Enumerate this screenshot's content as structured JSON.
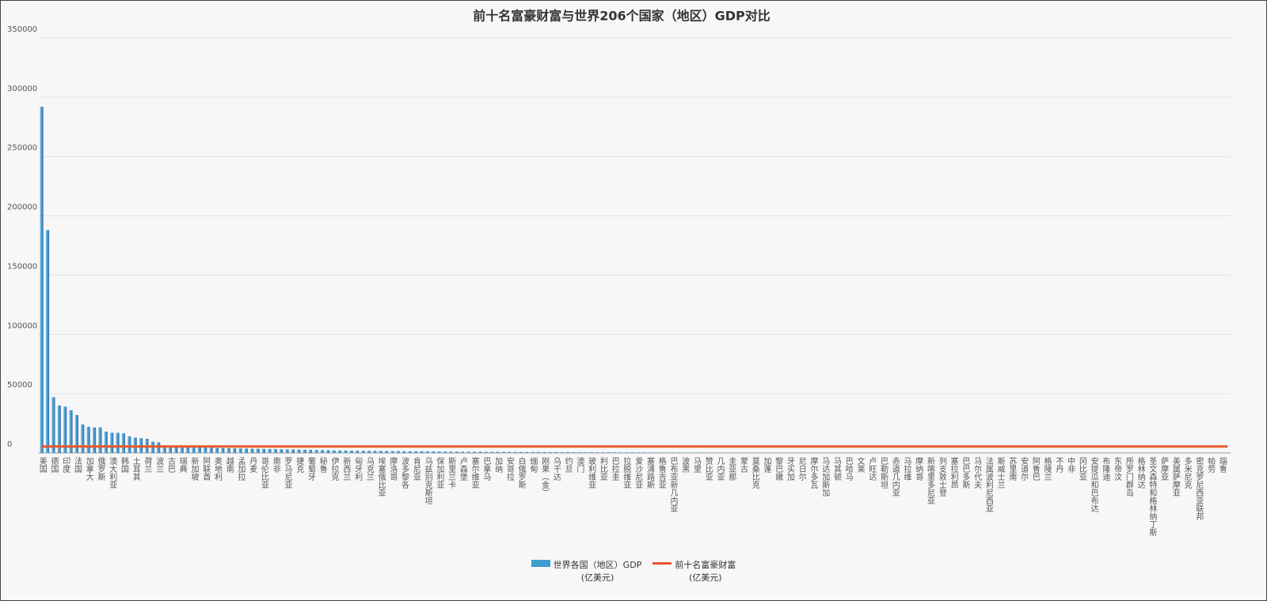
{
  "chart_data": {
    "type": "bar",
    "title": "前十名富豪财富与世界206个国家（地区）GDP对比",
    "categories": [
      "美国",
      null,
      "德国",
      null,
      "印度",
      null,
      "法国",
      null,
      "加拿大",
      null,
      "俄罗斯",
      null,
      "澳大利亚",
      null,
      "韩国",
      null,
      "土耳其",
      null,
      "荷兰",
      null,
      "波兰",
      null,
      "古巴",
      null,
      "瑞典",
      null,
      "新加坡",
      null,
      "阿联酋",
      null,
      "奥地利",
      null,
      "越南",
      null,
      "孟加拉",
      null,
      "丹麦",
      null,
      "哥伦比亚",
      null,
      "南非",
      null,
      "罗马尼亚",
      null,
      "捷克",
      null,
      "葡萄牙",
      null,
      "秘鲁",
      null,
      "伊拉克",
      null,
      "新西兰",
      null,
      "匈牙利",
      null,
      "乌克兰",
      null,
      "埃塞俄比亚",
      null,
      "摩洛哥",
      null,
      "波多黎各",
      null,
      "肯尼亚",
      null,
      "乌兹别克斯坦",
      null,
      "保加利亚",
      null,
      "斯里兰卡",
      null,
      "卢森堡",
      null,
      "塞尔维亚",
      null,
      "巴拿马",
      null,
      "加纳",
      null,
      "安哥拉",
      null,
      "白俄罗斯",
      null,
      "缅甸",
      null,
      "刚果（金）",
      null,
      "乌干达",
      null,
      "约旦",
      null,
      "澳门",
      null,
      "玻利维亚",
      null,
      "利比亚",
      null,
      "巴拉圭",
      null,
      "拉脱维亚",
      null,
      "爱沙尼亚",
      null,
      "塞浦路斯",
      null,
      "格鲁吉亚",
      null,
      "巴布亚新几内亚",
      null,
      "波黑",
      null,
      "马里",
      null,
      "赞比亚",
      null,
      "几内亚",
      null,
      "圭亚那",
      null,
      "蒙古",
      null,
      "莫桑比克",
      null,
      "加蓬",
      null,
      "黎巴嫩",
      null,
      "牙买加",
      null,
      "尼日尔",
      null,
      "摩尔多瓦",
      null,
      "马达加斯加",
      null,
      "马其顿",
      null,
      "巴哈马",
      null,
      "文莱",
      null,
      "卢旺达",
      null,
      "巴勒斯坦",
      null,
      "赤道几内亚",
      null,
      "马拉维",
      null,
      "摩纳哥",
      null,
      "新喀里多尼亚",
      null,
      "列支敦士登",
      null,
      "塞拉利昂",
      null,
      "巴巴多斯",
      null,
      "马尔代夫",
      null,
      "法属波利尼西亚",
      null,
      "斯威士兰",
      null,
      "苏里南",
      null,
      "安道尔",
      null,
      "阿鲁巴",
      null,
      "格陵兰",
      null,
      "不丹",
      null,
      "中非",
      null,
      "冈比亚",
      null,
      "安提瓜和巴布达",
      null,
      "布隆迪",
      null,
      "东帝汶",
      null,
      "所罗门群岛",
      null,
      "格林纳达",
      null,
      "圣文森特和格林纳丁斯",
      null,
      "萨摩亚",
      null,
      "美属萨摩亚",
      null,
      "多米尼克",
      null,
      "密克罗尼西亚联邦",
      null,
      "帕劳",
      null,
      "瑙鲁",
      null
    ],
    "series": [
      {
        "name": "世界各国（地区）GDP\n(亿美元)",
        "type": "bar",
        "color": "#3d9fd0",
        "values": [
          292000,
          188000,
          47000,
          40000,
          39000,
          36000,
          32000,
          24000,
          22000,
          21500,
          21500,
          18000,
          17000,
          17000,
          16500,
          14000,
          13000,
          12500,
          12000,
          9500,
          9000,
          6500,
          6000,
          6000,
          5500,
          5000,
          4800,
          4600,
          4500,
          4400,
          4200,
          4100,
          4000,
          3900,
          3800,
          3700,
          3600,
          3500,
          3400,
          3300,
          3200,
          3100,
          3000,
          2900,
          2800,
          2700,
          2600,
          2500,
          2400,
          2300,
          2200,
          2100,
          2000,
          1950,
          1900,
          1850,
          1800,
          1750,
          1700,
          1650,
          1600,
          1550,
          1500,
          1450,
          1400,
          1350,
          1300,
          1250,
          1200,
          1150,
          1100,
          1050,
          1000,
          980,
          960,
          940,
          920,
          900,
          880,
          860,
          840,
          820,
          800,
          780,
          760,
          740,
          720,
          700,
          680,
          660,
          640,
          620,
          600,
          580,
          560,
          540,
          520,
          500,
          480,
          460,
          440,
          430,
          420,
          410,
          400,
          390,
          380,
          370,
          360,
          350,
          340,
          330,
          320,
          310,
          300,
          290,
          280,
          270,
          260,
          250,
          240,
          235,
          230,
          225,
          220,
          215,
          210,
          205,
          200,
          195,
          190,
          185,
          180,
          175,
          170,
          165,
          160,
          155,
          150,
          145,
          140,
          135,
          130,
          125,
          120,
          115,
          110,
          105,
          100,
          98,
          96,
          94,
          92,
          90,
          88,
          86,
          84,
          82,
          80,
          78,
          76,
          74,
          72,
          70,
          68,
          66,
          64,
          62,
          60,
          58,
          56,
          54,
          52,
          50,
          48,
          46,
          44,
          42,
          40,
          38,
          36,
          34,
          32,
          30,
          28,
          26,
          24,
          22,
          20,
          19,
          18,
          17,
          16,
          15,
          14,
          13,
          12,
          11,
          10,
          9,
          8,
          7,
          6,
          5
        ]
      },
      {
        "name": "前十名富豪财富\n(亿美元)",
        "type": "line",
        "color": "#e8572a",
        "values": [
          5400,
          5400,
          5400,
          5400,
          5400,
          5400,
          5400,
          5400,
          5400,
          5400,
          5400,
          5400,
          5400,
          5400,
          5400,
          5400,
          5400,
          5400,
          5400,
          5400,
          5400,
          5400,
          5400,
          5400,
          5400,
          5400,
          5400,
          5400,
          5400,
          5400,
          5400,
          5400,
          5400,
          5400,
          5400,
          5400,
          5400,
          5400,
          5400,
          5400,
          5400,
          5400,
          5400,
          5400,
          5400,
          5400,
          5400,
          5400,
          5400,
          5400,
          5400,
          5400,
          5400,
          5400,
          5400,
          5400,
          5400,
          5400,
          5400,
          5400,
          5400,
          5400,
          5400,
          5400,
          5400,
          5400,
          5400,
          5400,
          5400,
          5400,
          5400,
          5400,
          5400,
          5400,
          5400,
          5400,
          5400,
          5400,
          5400,
          5400,
          5400,
          5400,
          5400,
          5400,
          5400,
          5400,
          5400,
          5400,
          5400,
          5400,
          5400,
          5400,
          5400,
          5400,
          5400,
          5400,
          5400,
          5400,
          5400,
          5400,
          5400,
          5400,
          5400,
          5400,
          5400,
          5400,
          5400,
          5400,
          5400,
          5400,
          5400,
          5400,
          5400,
          5400,
          5400,
          5400,
          5400,
          5400,
          5400,
          5400,
          5400,
          5400,
          5400,
          5400,
          5400,
          5400,
          5400,
          5400,
          5400,
          5400,
          5400,
          5400,
          5400,
          5400,
          5400,
          5400,
          5400,
          5400,
          5400,
          5400,
          5400,
          5400,
          5400,
          5400,
          5400,
          5400,
          5400,
          5400,
          5400,
          5400,
          5400,
          5400,
          5400,
          5400,
          5400,
          5400,
          5400,
          5400,
          5400,
          5400,
          5400,
          5400,
          5400,
          5400,
          5400,
          5400,
          5400,
          5400,
          5400,
          5400,
          5400,
          5400,
          5400,
          5400,
          5400,
          5400,
          5400,
          5400,
          5400,
          5400,
          5400,
          5400,
          5400,
          5400,
          5400,
          5400,
          5400,
          5400,
          5400,
          5400,
          5400,
          5400,
          5400,
          5400,
          5400,
          5400,
          5400,
          5400,
          5400,
          5400,
          5400,
          5400,
          5400,
          5400
        ]
      }
    ],
    "ylim": [
      0,
      350000
    ],
    "yticks": [
      0,
      50000,
      100000,
      150000,
      200000,
      250000,
      300000,
      350000
    ],
    "grid": true
  }
}
